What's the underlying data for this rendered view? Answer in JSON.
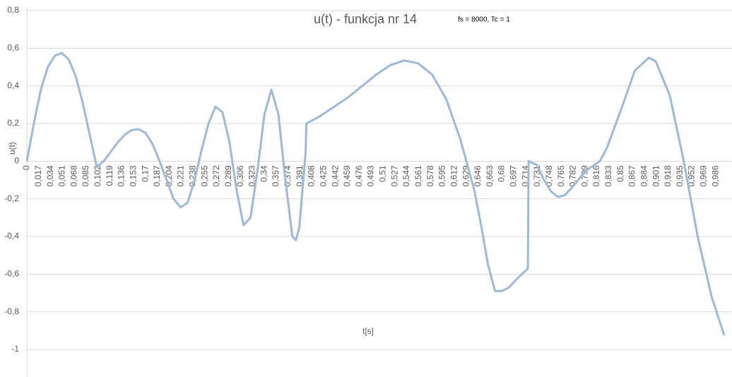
{
  "chart_data": {
    "type": "line",
    "title": "u(t) - funkcja nr 14",
    "subtitle": "fs = 8000, Tc = 1",
    "x_label": "t[s]",
    "y_label": "u(t)",
    "color": "#9bb8dd",
    "grid": true,
    "xlim": [
      0,
      1.0
    ],
    "ylim": [
      -1,
      0.8
    ],
    "yticks": [
      {
        "value": 0.8,
        "label": "0,8"
      },
      {
        "value": 0.6,
        "label": "0,6"
      },
      {
        "value": 0.4,
        "label": "0,4"
      },
      {
        "value": 0.2,
        "label": "0,2"
      },
      0,
      {
        "value": -0.2,
        "label": "-0,2"
      },
      {
        "value": -0.4,
        "label": "-0,4"
      },
      {
        "value": -0.6,
        "label": "-0,6"
      },
      {
        "value": -0.8,
        "label": "-0,8"
      },
      -1
    ],
    "xticks": [
      0,
      {
        "value": 0.017,
        "label": "0,017"
      },
      {
        "value": 0.034,
        "label": "0,034"
      },
      {
        "value": 0.051,
        "label": "0,051"
      },
      {
        "value": 0.068,
        "label": "0,068"
      },
      {
        "value": 0.085,
        "label": "0,085"
      },
      {
        "value": 0.102,
        "label": "0,102"
      },
      {
        "value": 0.119,
        "label": "0,119"
      },
      {
        "value": 0.136,
        "label": "0,136"
      },
      {
        "value": 0.153,
        "label": "0,153"
      },
      {
        "value": 0.17,
        "label": "0,17"
      },
      {
        "value": 0.187,
        "label": "0,187"
      },
      {
        "value": 0.204,
        "label": "0,204"
      },
      {
        "value": 0.221,
        "label": "0,221"
      },
      {
        "value": 0.238,
        "label": "0,238"
      },
      {
        "value": 0.255,
        "label": "0,255"
      },
      {
        "value": 0.272,
        "label": "0,272"
      },
      {
        "value": 0.289,
        "label": "0,289"
      },
      {
        "value": 0.306,
        "label": "0,306"
      },
      {
        "value": 0.323,
        "label": "0,323"
      },
      {
        "value": 0.34,
        "label": "0,34"
      },
      {
        "value": 0.357,
        "label": "0,357"
      },
      {
        "value": 0.374,
        "label": "0,374"
      },
      {
        "value": 0.391,
        "label": "0,391"
      },
      {
        "value": 0.408,
        "label": "0,408"
      },
      {
        "value": 0.425,
        "label": "0,425"
      },
      {
        "value": 0.442,
        "label": "0,442"
      },
      {
        "value": 0.459,
        "label": "0,459"
      },
      {
        "value": 0.476,
        "label": "0,476"
      },
      {
        "value": 0.493,
        "label": "0,493"
      },
      {
        "value": 0.51,
        "label": "0,51"
      },
      {
        "value": 0.527,
        "label": "0,527"
      },
      {
        "value": 0.544,
        "label": "0,544"
      },
      {
        "value": 0.561,
        "label": "0,561"
      },
      {
        "value": 0.578,
        "label": "0,578"
      },
      {
        "value": 0.595,
        "label": "0,595"
      },
      {
        "value": 0.612,
        "label": "0,612"
      },
      {
        "value": 0.629,
        "label": "0,629"
      },
      {
        "value": 0.646,
        "label": "0,646"
      },
      {
        "value": 0.663,
        "label": "0,663"
      },
      {
        "value": 0.68,
        "label": "0,68"
      },
      {
        "value": 0.697,
        "label": "0,697"
      },
      {
        "value": 0.714,
        "label": "0,714"
      },
      {
        "value": 0.731,
        "label": "0,731"
      },
      {
        "value": 0.748,
        "label": "0,748"
      },
      {
        "value": 0.765,
        "label": "0,765"
      },
      {
        "value": 0.782,
        "label": "0,782"
      },
      {
        "value": 0.799,
        "label": "0,799"
      },
      {
        "value": 0.816,
        "label": "0,816"
      },
      {
        "value": 0.833,
        "label": "0,833"
      },
      {
        "value": 0.85,
        "label": "0,85"
      },
      {
        "value": 0.867,
        "label": "0,867"
      },
      {
        "value": 0.884,
        "label": "0,884"
      },
      {
        "value": 0.901,
        "label": "0,901"
      },
      {
        "value": 0.918,
        "label": "0,918"
      },
      {
        "value": 0.935,
        "label": "0,935"
      },
      {
        "value": 0.952,
        "label": "0,952"
      },
      {
        "value": 0.969,
        "label": "0,969"
      },
      {
        "value": 0.986,
        "label": "0,986"
      }
    ],
    "x": [
      0,
      0.01,
      0.02,
      0.03,
      0.04,
      0.05,
      0.06,
      0.07,
      0.08,
      0.09,
      0.1,
      0.11,
      0.12,
      0.13,
      0.14,
      0.15,
      0.16,
      0.17,
      0.18,
      0.19,
      0.2,
      0.21,
      0.22,
      0.23,
      0.24,
      0.25,
      0.26,
      0.27,
      0.28,
      0.29,
      0.3,
      0.31,
      0.32,
      0.33,
      0.34,
      0.35,
      0.36,
      0.37,
      0.38,
      0.385,
      0.39,
      0.399,
      0.4,
      0.42,
      0.44,
      0.46,
      0.48,
      0.5,
      0.52,
      0.54,
      0.56,
      0.58,
      0.6,
      0.62,
      0.64,
      0.65,
      0.66,
      0.67,
      0.68,
      0.69,
      0.7,
      0.717,
      0.718,
      0.73,
      0.74,
      0.75,
      0.76,
      0.77,
      0.78,
      0.8,
      0.82,
      0.83,
      0.85,
      0.87,
      0.89,
      0.9,
      0.92,
      0.94,
      0.96,
      0.98,
      0.998
    ],
    "values": [
      0,
      0.2,
      0.38,
      0.5,
      0.56,
      0.575,
      0.54,
      0.45,
      0.31,
      0.14,
      -0.03,
      0.0,
      0.05,
      0.1,
      0.14,
      0.165,
      0.17,
      0.15,
      0.09,
      0.0,
      -0.1,
      -0.2,
      -0.245,
      -0.22,
      -0.1,
      0.06,
      0.2,
      0.29,
      0.26,
      0.1,
      -0.15,
      -0.34,
      -0.3,
      -0.05,
      0.25,
      0.38,
      0.25,
      -0.1,
      -0.4,
      -0.42,
      -0.35,
      0.05,
      0.2,
      0.24,
      0.29,
      0.34,
      0.4,
      0.46,
      0.51,
      0.535,
      0.52,
      0.46,
      0.33,
      0.12,
      -0.15,
      -0.34,
      -0.55,
      -0.69,
      -0.69,
      -0.67,
      -0.63,
      -0.57,
      0,
      -0.02,
      -0.1,
      -0.16,
      -0.19,
      -0.18,
      -0.14,
      -0.05,
      0,
      0.07,
      0.27,
      0.48,
      0.55,
      0.53,
      0.35,
      0.0,
      -0.4,
      -0.72,
      -0.925
    ]
  }
}
